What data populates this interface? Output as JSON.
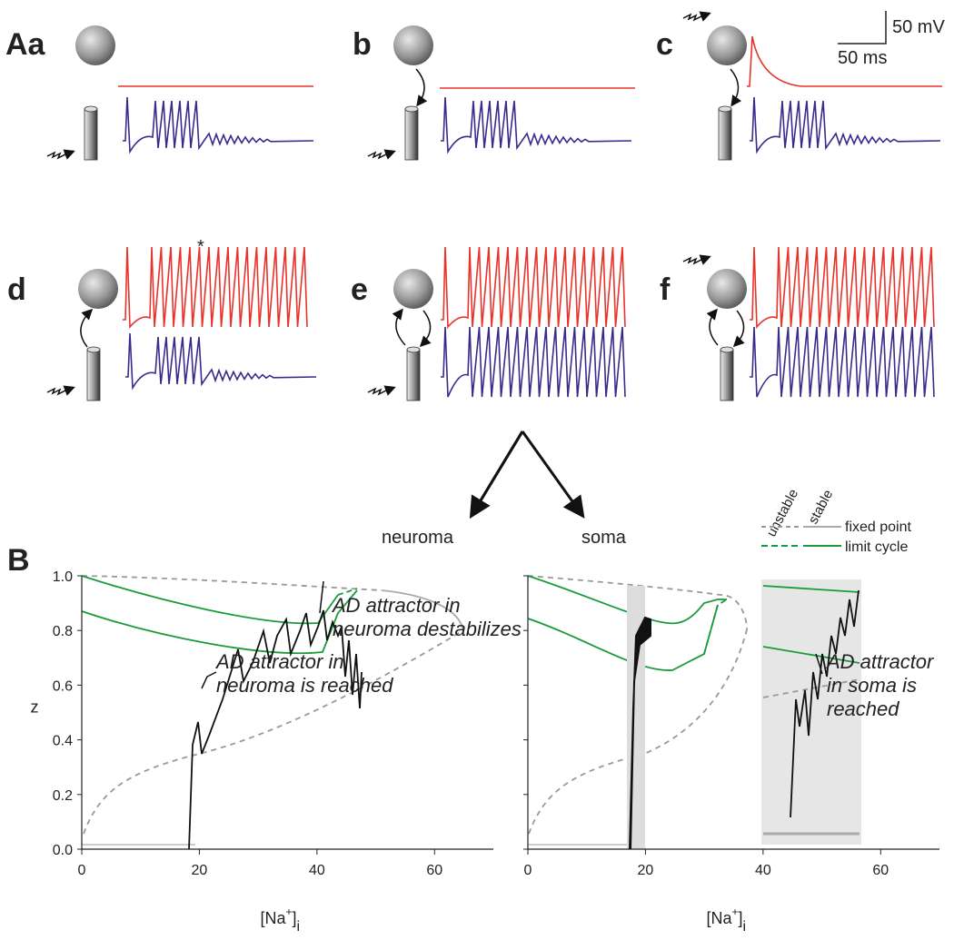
{
  "panel_labels": [
    "Aa",
    "b",
    "c",
    "d",
    "e",
    "f",
    "B"
  ],
  "scale_bar": {
    "voltage": "50 mV",
    "time": "50 ms"
  },
  "asterisk": "*",
  "arrow_labels": [
    "neuroma",
    "soma"
  ],
  "legend": {
    "unstable": "unstable",
    "stable": "stable",
    "fixed_point": "fixed point",
    "limit_cycle": "limit cycle"
  },
  "annotations": [
    {
      "lines": [
        "AD attractor in",
        "neuroma destabilizes"
      ]
    },
    {
      "lines": [
        "AD attractor in",
        "neuroma is reached"
      ]
    },
    {
      "lines": [
        "AD attractor",
        "in soma is",
        "reached"
      ]
    }
  ],
  "chart_data": [
    {
      "type": "line",
      "y_label": "z",
      "x_label": {
        "text": "[Na",
        "sup": "+",
        "close": "]",
        "sub": "i"
      },
      "xlim": [
        0,
        70
      ],
      "xticks": [
        0,
        20,
        40,
        60
      ],
      "ylim": [
        0,
        1.0
      ],
      "yticks": [
        {
          "value": 0,
          "label": "0.0"
        },
        {
          "value": 0.2,
          "label": "0.2"
        },
        {
          "value": 0.4,
          "label": "0.4"
        },
        {
          "value": 0.6,
          "label": "0.6"
        },
        {
          "value": 0.8,
          "label": "0.8"
        },
        {
          "value": 1.0,
          "label": "1.0"
        }
      ],
      "show_ytick_labels": true
    },
    {
      "type": "line",
      "x_label": {
        "text": "[Na",
        "sup": "+",
        "close": "]",
        "sub": "i"
      },
      "xlim": [
        0,
        70
      ],
      "xticks": [
        0,
        20,
        40,
        60
      ],
      "ylim": [
        0,
        1.0
      ],
      "yticks": [
        0,
        0.2,
        0.4,
        0.6,
        0.8,
        1.0
      ],
      "show_ytick_labels": false
    }
  ]
}
